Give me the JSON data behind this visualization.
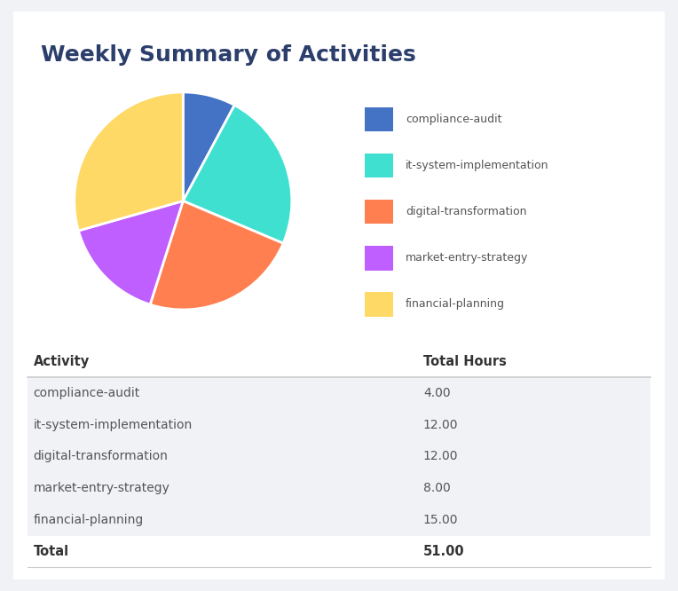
{
  "title": "Weekly Summary of Activities",
  "activities": [
    "compliance-audit",
    "it-system-implementation",
    "digital-transformation",
    "market-entry-strategy",
    "financial-planning"
  ],
  "hours": [
    4.0,
    12.0,
    12.0,
    8.0,
    15.0
  ],
  "total": 51.0,
  "colors": [
    "#4472C4",
    "#40E0D0",
    "#FF7F50",
    "#BF5FFF",
    "#FFD966"
  ],
  "col_headers": [
    "Activity",
    "Total Hours"
  ],
  "bg_color": "#f0f2f5",
  "card_color": "#ffffff",
  "table_row_alt": "#f0f2f5",
  "table_row_white": "#ffffff",
  "title_color": "#2c3e6b",
  "text_color": "#555555",
  "header_color": "#333333",
  "divider_color": "#cccccc",
  "legend_text_color": "#555555"
}
